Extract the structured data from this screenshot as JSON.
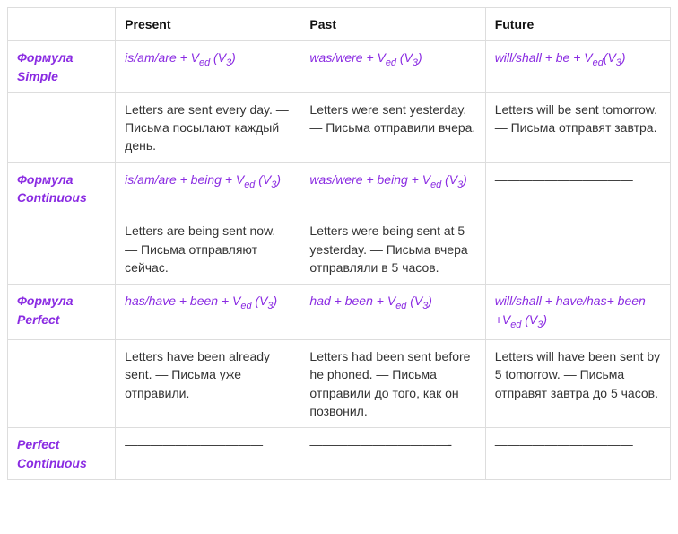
{
  "headers": {
    "present": "Present",
    "past": "Past",
    "future": "Future"
  },
  "rows": {
    "simple": {
      "label1": "Формула",
      "label2": "Simple"
    },
    "continuous": {
      "label1": "Формула",
      "label2": "Continuous"
    },
    "perfect": {
      "label1": "Формула",
      "label2": "Perfect"
    },
    "perfcont": {
      "label1": "Perfect",
      "label2": "Continuous"
    }
  },
  "formulas": {
    "simple": {
      "present_lead": "is/am/are + V",
      "present_sub": "ed",
      "present_tail": " (V",
      "present_sub2": "3",
      "present_close": ")",
      "past_lead": "was/were + V",
      "past_sub": "ed",
      "past_tail": " (V",
      "past_sub2": "3",
      "past_close": ")",
      "future_lead": "will/shall + be + V",
      "future_sub": "ed",
      "future_tail": "(V",
      "future_sub2": "3",
      "future_close": ")"
    },
    "continuous": {
      "present_lead": "is/am/are + being + V",
      "present_sub": "ed",
      "present_tail": " (V",
      "present_sub2": "3",
      "present_close": ")",
      "past_lead": "was/were + being + V",
      "past_sub": "ed",
      "past_tail": " (V",
      "past_sub2": "3",
      "past_close": ")",
      "future_text": "———————————"
    },
    "perfect": {
      "present_lead": "has/have + been + V",
      "present_sub": "ed",
      "present_tail": " (V",
      "present_sub2": "3",
      "present_close": ")",
      "past_lead": "had + been + V",
      "past_sub": "ed",
      "past_tail": " (V",
      "past_sub2": "3",
      "past_close": ")",
      "future_lead": " will/shall + have/has+ been +V",
      "future_sub": "ed",
      "future_tail": " (V",
      "future_sub2": "3",
      "future_close": ")"
    },
    "perfcont": {
      "present_text": "———————————",
      "past_text": "———————————-",
      "future_text": "———————————"
    }
  },
  "examples": {
    "simple": {
      "present": " Letters are sent every day. — Письма посылают каждый день.",
      "past": " Letters were sent yesterday. — Письма отправили вчера.",
      "future": " Letters will be sent tomorrow. — Письма отправят завтра."
    },
    "continuous": {
      "present": " Letters are being sent now. — Письма отправляют сейчас.",
      "past": " Letters were being sent at 5 yesterday. — Письма вчера отправляли в 5 часов.",
      "future": "———————————"
    },
    "perfect": {
      "present": "  Letters have been already sent. — Письма уже отправили.",
      "past": " Letters had been sent before he phoned. — Письма отправили до того, как он позвонил.",
      "future": "  Letters will have been sent by 5 tomorrow. — Письма отправят завтра до 5 часов."
    }
  },
  "colors": {
    "accent": "#8a2be2",
    "border": "#dddddd",
    "text": "#333333",
    "bg": "#ffffff"
  },
  "typography": {
    "base_font_size_pt": 10.5,
    "font_family": "Arial"
  }
}
